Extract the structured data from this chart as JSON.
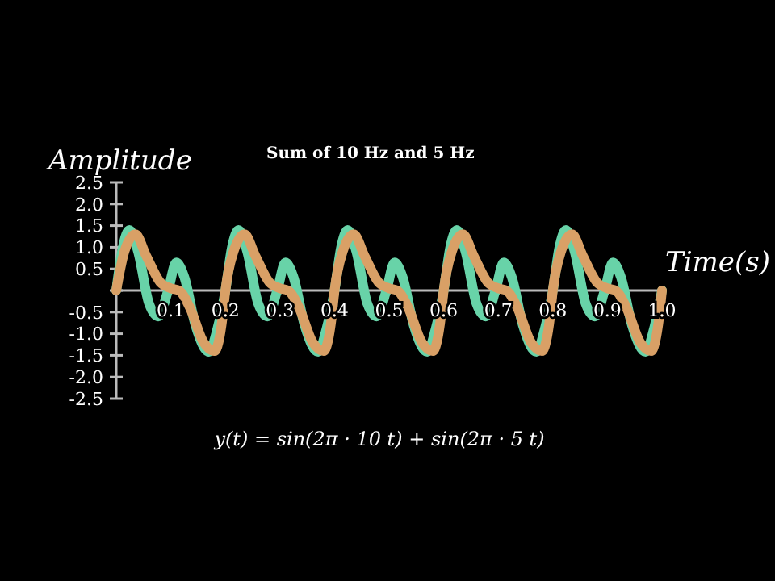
{
  "chart_data": {
    "type": "line",
    "title": "Sum of 10 Hz and 5 Hz",
    "xlabel": "Time(s)",
    "ylabel": "Amplitude",
    "annotations": [
      "y(t) = sin(2π · 10 t) + sin(2π · 5 t)"
    ],
    "xlim": [
      0,
      1
    ],
    "xticks": [
      0.1,
      0.2,
      0.3,
      0.4,
      0.5,
      0.6,
      0.7,
      0.8,
      0.9,
      {
        "value": 1,
        "label": "1.0"
      }
    ],
    "ylim": [
      -2.5,
      2.5
    ],
    "yticks": [
      -2.5,
      {
        "value": -2,
        "label": "-2.0"
      },
      -1.5,
      {
        "value": -1,
        "label": "-1.0"
      },
      -0.5,
      {
        "value": 0,
        "label": null
      },
      0.5,
      {
        "value": 1,
        "label": "1.0"
      },
      1.5,
      {
        "value": 2,
        "label": "2.0"
      },
      2.5
    ],
    "grid": false,
    "marker": "none",
    "line_style": "solid",
    "series": [
      {
        "color": "#68d3a8",
        "x": [
          0,
          0.012,
          0.024,
          0.04,
          0.06,
          0.077,
          0.095,
          0.11,
          0.125,
          0.145,
          0.17,
          0.185,
          0.2,
          0.212,
          0.224,
          0.24,
          0.26,
          0.277,
          0.295,
          0.31,
          0.325,
          0.345,
          0.37,
          0.385,
          0.4,
          0.412,
          0.424,
          0.44,
          0.46,
          0.477,
          0.495,
          0.51,
          0.525,
          0.545,
          0.57,
          0.585,
          0.6,
          0.612,
          0.624,
          0.64,
          0.66,
          0.677,
          0.695,
          0.71,
          0.725,
          0.745,
          0.77,
          0.785,
          0.8,
          0.812,
          0.824,
          0.84,
          0.86,
          0.877,
          0.895,
          0.91,
          0.925,
          0.945,
          0.97,
          0.985,
          1.0
        ],
        "values": [
          0,
          1.0,
          1.4,
          0.9,
          -0.3,
          -0.6,
          0,
          0.65,
          0.3,
          -0.8,
          -1.42,
          -0.9,
          0,
          1.0,
          1.4,
          0.9,
          -0.3,
          -0.6,
          0,
          0.65,
          0.3,
          -0.8,
          -1.42,
          -0.9,
          0,
          1.0,
          1.4,
          0.9,
          -0.3,
          -0.6,
          0,
          0.65,
          0.3,
          -0.8,
          -1.42,
          -0.9,
          0,
          1.0,
          1.4,
          0.9,
          -0.3,
          -0.6,
          0,
          0.65,
          0.3,
          -0.8,
          -1.42,
          -0.9,
          0,
          1.0,
          1.4,
          0.9,
          -0.3,
          -0.6,
          0,
          0.65,
          0.3,
          -0.8,
          -1.42,
          -0.9,
          0
        ]
      },
      {
        "color": "#d9a066",
        "x": [
          0,
          0.015,
          0.035,
          0.055,
          0.08,
          0.1,
          0.115,
          0.135,
          0.16,
          0.18,
          0.195,
          0.2,
          0.215,
          0.235,
          0.255,
          0.28,
          0.3,
          0.315,
          0.335,
          0.36,
          0.38,
          0.395,
          0.4,
          0.415,
          0.435,
          0.455,
          0.48,
          0.5,
          0.515,
          0.535,
          0.56,
          0.58,
          0.595,
          0.6,
          0.615,
          0.635,
          0.655,
          0.68,
          0.7,
          0.715,
          0.735,
          0.76,
          0.78,
          0.795,
          0.8,
          0.815,
          0.835,
          0.855,
          0.88,
          0.9,
          0.915,
          0.935,
          0.96,
          0.98,
          0.995,
          1.0
        ],
        "values": [
          0,
          0.9,
          1.3,
          0.8,
          0.2,
          0.05,
          0,
          -0.4,
          -1.2,
          -1.4,
          -0.6,
          0,
          0.9,
          1.3,
          0.8,
          0.2,
          0.05,
          0,
          -0.4,
          -1.2,
          -1.4,
          -0.6,
          0,
          0.9,
          1.3,
          0.8,
          0.2,
          0.05,
          0,
          -0.4,
          -1.2,
          -1.4,
          -0.6,
          0,
          0.9,
          1.3,
          0.8,
          0.2,
          0.05,
          0,
          -0.4,
          -1.2,
          -1.4,
          -0.6,
          0,
          0.9,
          1.3,
          0.8,
          0.2,
          0.05,
          0,
          -0.4,
          -1.2,
          -1.4,
          -0.6,
          0
        ]
      }
    ]
  }
}
